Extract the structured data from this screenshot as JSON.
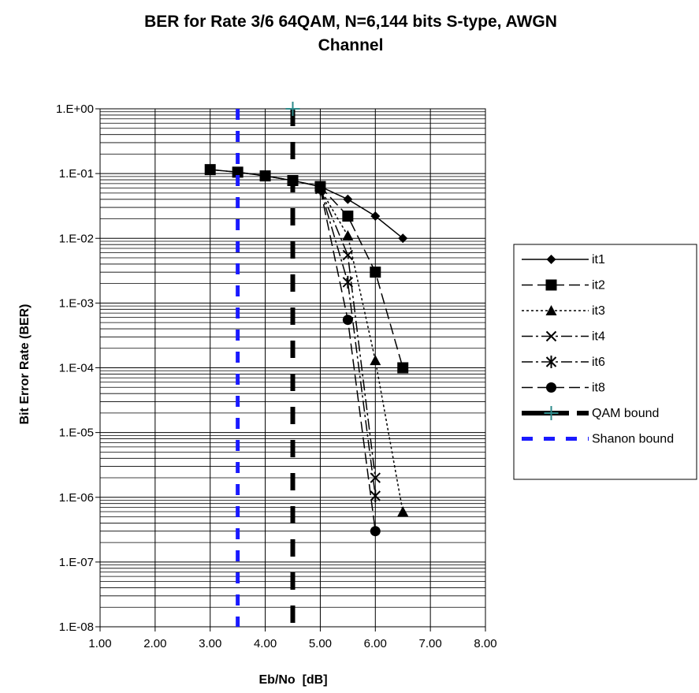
{
  "chart_data": {
    "type": "line",
    "title_line1": "BER for Rate 3/6 64QAM, N=6,144 bits S-type, AWGN",
    "title_line2": "Channel",
    "xlabel": "Eb/No  [dB]",
    "ylabel": "Bit Error Rate (BER)",
    "x_scale": "linear",
    "y_scale": "log",
    "xlim": [
      1.0,
      8.0
    ],
    "ylim": [
      1e-08,
      1.0
    ],
    "x_ticks": [
      1.0,
      2.0,
      3.0,
      4.0,
      5.0,
      6.0,
      7.0,
      8.0
    ],
    "x_tick_labels": [
      "1.00",
      "2.00",
      "3.00",
      "4.00",
      "5.00",
      "6.00",
      "7.00",
      "8.00"
    ],
    "y_tick_labels": [
      "1.E+00",
      "1.E-01",
      "1.E-02",
      "1.E-03",
      "1.E-04",
      "1.E-05",
      "1.E-06",
      "1.E-07",
      "1.E-08"
    ],
    "grid": true,
    "legend_position": "right",
    "series": [
      {
        "name": "it1",
        "marker": "diamond",
        "dash": "solid",
        "color": "#000000",
        "x": [
          3.0,
          3.5,
          4.0,
          4.5,
          5.0,
          5.5,
          6.0,
          6.5
        ],
        "y": [
          0.115,
          0.105,
          0.092,
          0.078,
          0.063,
          0.04,
          0.022,
          0.01
        ]
      },
      {
        "name": "it2",
        "marker": "square",
        "dash": "longdash",
        "color": "#000000",
        "x": [
          3.0,
          3.5,
          4.0,
          4.5,
          5.0,
          5.5,
          6.0,
          6.5
        ],
        "y": [
          0.115,
          0.105,
          0.092,
          0.078,
          0.063,
          0.022,
          0.003,
          0.0001
        ]
      },
      {
        "name": "it3",
        "marker": "triangle",
        "dash": "dot",
        "color": "#000000",
        "x": [
          5.0,
          5.5,
          6.0,
          6.5
        ],
        "y": [
          0.058,
          0.011,
          0.00013,
          6e-07
        ]
      },
      {
        "name": "it4",
        "marker": "x",
        "dash": "dashdot",
        "color": "#000000",
        "x": [
          5.0,
          5.5,
          6.0
        ],
        "y": [
          0.058,
          0.0055,
          2e-06
        ]
      },
      {
        "name": "it6",
        "marker": "asterisk",
        "dash": "dashdot",
        "color": "#000000",
        "x": [
          5.0,
          5.5,
          6.0
        ],
        "y": [
          0.058,
          0.0021,
          1.05e-06
        ]
      },
      {
        "name": "it8",
        "marker": "circle",
        "dash": "longdash",
        "color": "#000000",
        "x": [
          5.0,
          5.5,
          6.0
        ],
        "y": [
          0.058,
          0.00055,
          3e-07
        ]
      },
      {
        "name": "QAM bound",
        "marker": "plus",
        "dash": "thickdash",
        "color": "#000000",
        "marker_color": "#2e8b8b",
        "x": [
          4.5,
          4.5
        ],
        "y": [
          1.0,
          1e-08
        ]
      },
      {
        "name": "Shanon bound",
        "marker": "none",
        "dash": "bluedash",
        "color": "#1a1aff",
        "x": [
          3.5,
          3.5
        ],
        "y": [
          1.0,
          1e-08
        ]
      }
    ]
  }
}
